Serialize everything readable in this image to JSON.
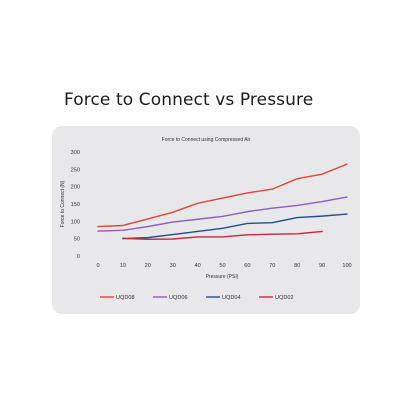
{
  "page": {
    "heading": "Force to Connect vs Pressure"
  },
  "chart_data": {
    "type": "line",
    "title": "Force to Connect using Compressed Air",
    "xlabel": "Pressure (PSI)",
    "ylabel": "Force to Connect (N)",
    "xlim": [
      0,
      100
    ],
    "ylim": [
      0,
      300
    ],
    "x_ticks": [
      0,
      10,
      20,
      30,
      40,
      50,
      60,
      70,
      80,
      90,
      100
    ],
    "y_ticks": [
      0,
      50,
      100,
      150,
      200,
      250,
      300
    ],
    "grid": false,
    "legend_position": "bottom",
    "series": [
      {
        "name": "UQD08",
        "color": "#e8413e",
        "x": [
          0,
          10,
          20,
          30,
          40,
          50,
          60,
          70,
          80,
          90,
          100
        ],
        "y": [
          85,
          88,
          107,
          126,
          152,
          167,
          182,
          193,
          223,
          236,
          265
        ]
      },
      {
        "name": "UQD06",
        "color": "#8b5cc4",
        "x": [
          0,
          10,
          20,
          30,
          40,
          50,
          60,
          70,
          80,
          90,
          100
        ],
        "y": [
          72,
          74,
          85,
          98,
          106,
          114,
          128,
          138,
          146,
          157,
          170
        ]
      },
      {
        "name": "UQD04",
        "color": "#1f4f8f",
        "x": [
          10,
          20,
          30,
          40,
          50,
          60,
          70,
          80,
          90,
          100
        ],
        "y": [
          50,
          53,
          62,
          71,
          80,
          94,
          96,
          111,
          115,
          121
        ]
      },
      {
        "name": "UQD02",
        "color": "#c9283a",
        "x": [
          10,
          20,
          30,
          40,
          50,
          60,
          70,
          80,
          90
        ],
        "y": [
          51,
          48,
          49,
          55,
          55,
          61,
          63,
          64,
          71
        ]
      }
    ]
  }
}
